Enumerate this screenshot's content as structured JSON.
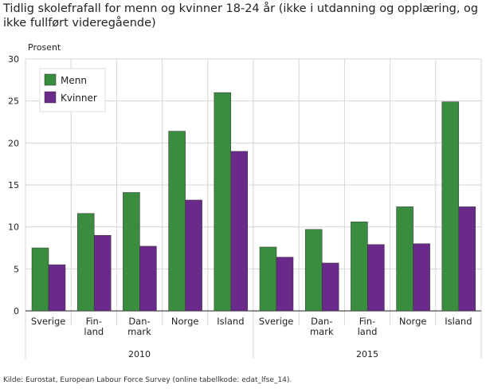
{
  "chart_data": {
    "type": "bar",
    "title": "Tidlig skolefrafall for menn og kvinner 18-24 år (ikke i utdanning og opplæring, og ikke fullført videregående)",
    "ylabel": "Prosent",
    "ylim": [
      0,
      30
    ],
    "yticks": [
      0,
      5,
      10,
      15,
      20,
      25,
      30
    ],
    "grid": true,
    "legend_position": "top-left",
    "groups": [
      {
        "label": "2010",
        "categories": [
          [
            "Sverige"
          ],
          [
            "Fin-",
            "land"
          ],
          [
            "Dan-",
            "mark"
          ],
          [
            "Norge"
          ],
          [
            "Island"
          ]
        ]
      },
      {
        "label": "2015",
        "categories": [
          [
            "Sverige"
          ],
          [
            "Dan-",
            "mark"
          ],
          [
            "Fin-",
            "land"
          ],
          [
            "Norge"
          ],
          [
            "Island"
          ]
        ]
      }
    ],
    "series": [
      {
        "name": "Menn",
        "color": "#3a8c3f",
        "values": [
          7.5,
          11.6,
          14.1,
          21.4,
          26.0,
          7.6,
          9.7,
          10.6,
          12.4,
          24.9
        ]
      },
      {
        "name": "Kvinner",
        "color": "#6a2a8a",
        "values": [
          5.5,
          9.0,
          7.7,
          13.2,
          19.0,
          6.4,
          5.7,
          7.9,
          8.0,
          12.4
        ]
      }
    ],
    "source": "Kilde: Eurostat, European Labour Force Survey (online tabellkode: edat_lfse_14)."
  }
}
